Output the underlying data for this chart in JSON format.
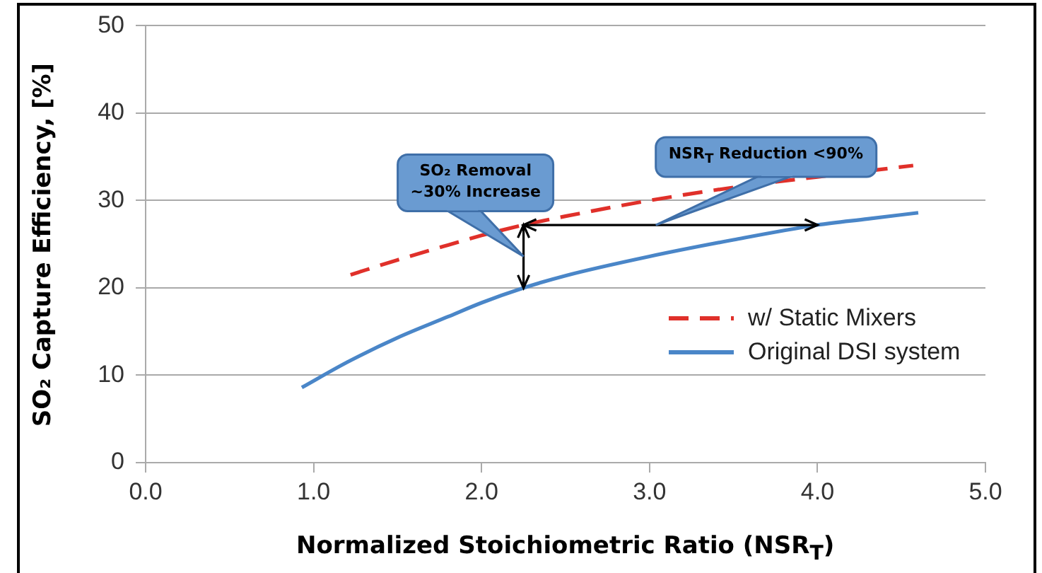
{
  "chart_data": {
    "type": "line",
    "xlabel": "Normalized Stoichiometric Ratio (NSR$_{T}$)",
    "ylabel": "SO₂ Capture Efficiency, [%]",
    "xlim": [
      0,
      5
    ],
    "xticks": [
      {
        "value": 0,
        "label": "0.0"
      },
      {
        "value": 1,
        "label": "1.0"
      },
      {
        "value": 2,
        "label": "2.0"
      },
      {
        "value": 3,
        "label": "3.0"
      },
      {
        "value": 4,
        "label": "4.0"
      },
      {
        "value": 5,
        "label": "5.0"
      }
    ],
    "ylim": [
      0,
      50
    ],
    "yticks": [
      0,
      10,
      20,
      30,
      40,
      50
    ],
    "grid": "y",
    "legend": "right",
    "marker": "none",
    "series": [
      {
        "name": "w/ Static Mixers",
        "color": "#e0302a",
        "line_style": "dashed",
        "x": [
          1.22,
          1.5,
          1.8,
          2.0,
          2.25,
          2.5,
          3.0,
          3.5,
          4.0,
          4.57
        ],
        "values": [
          21.5,
          23.2,
          24.9,
          26.0,
          27.2,
          28.2,
          30.0,
          31.5,
          32.7,
          34.0
        ]
      },
      {
        "name": "Original DSI system",
        "color": "#4a86c8",
        "line_style": "solid",
        "x": [
          0.93,
          1.2,
          1.5,
          1.8,
          2.0,
          2.25,
          2.5,
          3.0,
          3.5,
          4.0,
          4.3,
          4.6
        ],
        "values": [
          8.6,
          11.5,
          14.3,
          16.7,
          18.3,
          20.0,
          21.4,
          23.6,
          25.5,
          27.2,
          27.9,
          28.6
        ]
      }
    ],
    "annotations": [
      "SO₂ Removal\n~30% Increase",
      "NSR$_{T}$ Reduction <90%"
    ]
  }
}
